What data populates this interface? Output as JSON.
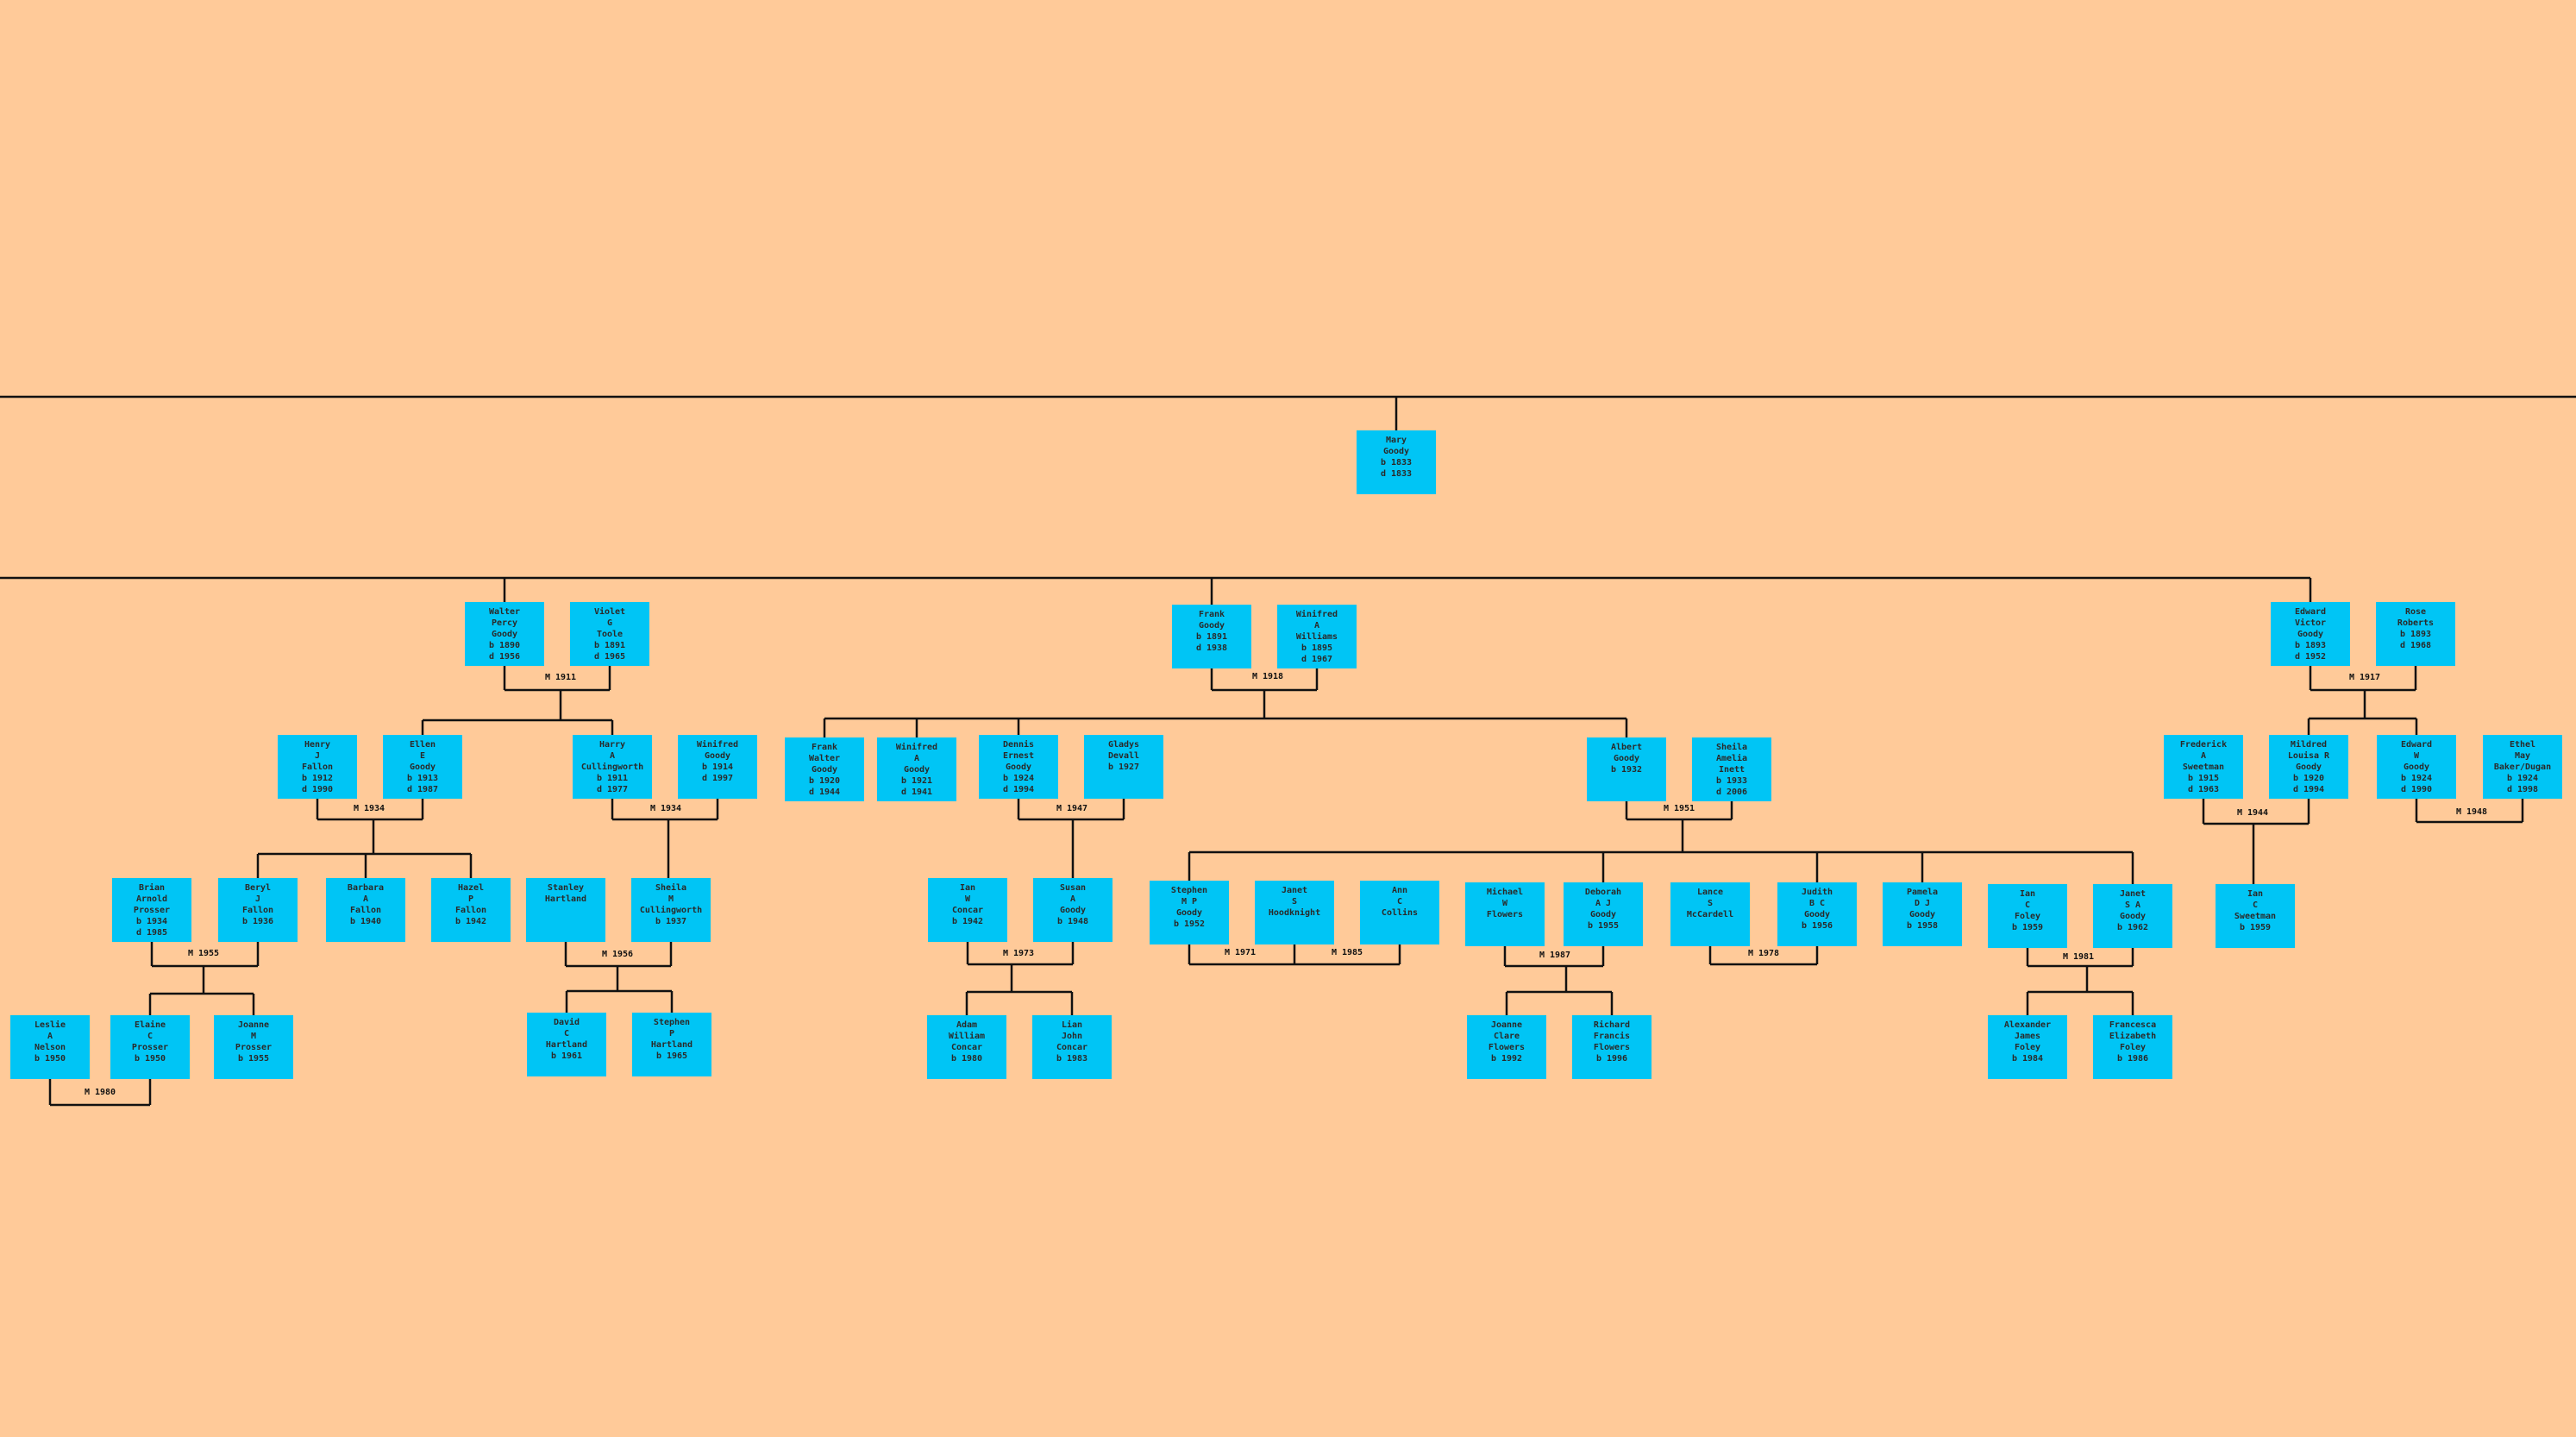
{
  "people": [
    {
      "id": "mary",
      "text": "Mary\nGoody\nb 1833\nd 1833"
    },
    {
      "id": "walter",
      "text": "Walter\nPercy\nGoody\nb 1890\nd 1956"
    },
    {
      "id": "violet",
      "text": "Violet\nG\nToole\nb 1891\nd 1965"
    },
    {
      "id": "frank1",
      "text": "Frank\nGoody\nb 1891\nd 1938"
    },
    {
      "id": "winifredA",
      "text": "Winifred\nA\nWilliams\nb 1895\nd 1967"
    },
    {
      "id": "edwardV",
      "text": "Edward\nVictor\nGoody\nb 1893\nd 1952"
    },
    {
      "id": "rose",
      "text": "Rose\nRoberts\nb 1893\nd 1968"
    },
    {
      "id": "henry",
      "text": "Henry\nJ\nFallon\nb 1912\nd 1990"
    },
    {
      "id": "ellen",
      "text": "Ellen\nE\nGoody\nb 1913\nd 1987"
    },
    {
      "id": "harry",
      "text": "Harry\nA\nCullingworth\nb 1911\nd 1977"
    },
    {
      "id": "winifredG",
      "text": "Winifred\nGoody\nb 1914\nd 1997"
    },
    {
      "id": "frankW",
      "text": "Frank\nWalter\nGoody\nb 1920\nd 1944"
    },
    {
      "id": "winifredAG",
      "text": "Winifred\nA\nGoody\nb 1921\nd 1941"
    },
    {
      "id": "dennis",
      "text": "Dennis\nErnest\nGoody\nb 1924\nd 1994"
    },
    {
      "id": "gladys",
      "text": "Gladys\nDevall\nb 1927"
    },
    {
      "id": "albert",
      "text": "Albert\nGoody\nb 1932"
    },
    {
      "id": "sheilaI",
      "text": "Sheila\nAmelia\nInett\nb 1933\nd 2006"
    },
    {
      "id": "frederick",
      "text": "Frederick\nA\nSweetman\nb 1915\nd 1963"
    },
    {
      "id": "mildred",
      "text": "Mildred\nLouisa R\nGoody\nb 1920\nd 1994"
    },
    {
      "id": "edwardW",
      "text": "Edward\nW\nGoody\nb 1924\nd 1990"
    },
    {
      "id": "ethel",
      "text": "Ethel\nMay\nBaker/Dugan\nb 1924\nd 1998"
    },
    {
      "id": "brian",
      "text": "Brian\nArnold\nProsser\nb 1934\nd 1985"
    },
    {
      "id": "beryl",
      "text": "Beryl\nJ\nFallon\nb 1936"
    },
    {
      "id": "barbara",
      "text": "Barbara\nA\nFallon\nb 1940"
    },
    {
      "id": "hazel",
      "text": "Hazel\nP\nFallon\nb 1942"
    },
    {
      "id": "stanley",
      "text": "Stanley\nHartland"
    },
    {
      "id": "sheilaC",
      "text": "Sheila\nM\nCullingworth\nb 1937"
    },
    {
      "id": "ian1",
      "text": "Ian\nW\nConcar\nb 1942"
    },
    {
      "id": "susan",
      "text": "Susan\nA\nGoody\nb 1948"
    },
    {
      "id": "stephenG",
      "text": "Stephen\nM P\nGoody\nb 1952"
    },
    {
      "id": "janet1",
      "text": "Janet\nS\nHoodknight"
    },
    {
      "id": "ann",
      "text": "Ann\nC\nCollins"
    },
    {
      "id": "michael",
      "text": "Michael\nW\nFlowers"
    },
    {
      "id": "deborah",
      "text": "Deborah\nA J\nGoody\nb 1955"
    },
    {
      "id": "lance",
      "text": "Lance\nS\nMcCardell"
    },
    {
      "id": "judith",
      "text": "Judith\nB C\nGoody\nb 1956"
    },
    {
      "id": "pamela",
      "text": "Pamela\nD J\nGoody\nb 1958"
    },
    {
      "id": "ianF",
      "text": "Ian\nC\nFoley\nb 1959"
    },
    {
      "id": "janetG",
      "text": "Janet\nS A\nGoody\nb 1962"
    },
    {
      "id": "ianS",
      "text": "Ian\nC\nSweetman\nb 1959"
    },
    {
      "id": "leslie",
      "text": "Leslie\nA\nNelson\nb 1950"
    },
    {
      "id": "elaine",
      "text": "Elaine\nC\nProsser\nb 1950"
    },
    {
      "id": "joanne",
      "text": "Joanne\nM\nProsser\nb 1955"
    },
    {
      "id": "david",
      "text": "David\nC\nHartland\nb 1961"
    },
    {
      "id": "stephenH",
      "text": "Stephen\nP\nHartland\nb 1965"
    },
    {
      "id": "adam",
      "text": "Adam\nWilliam\nConcar\nb 1980"
    },
    {
      "id": "lian",
      "text": "Lian\nJohn\nConcar\nb 1983"
    },
    {
      "id": "joanneF",
      "text": "Joanne\nClare\nFlowers\nb 1992"
    },
    {
      "id": "richard",
      "text": "Richard\nFrancis\nFlowers\nb 1996"
    },
    {
      "id": "alexander",
      "text": "Alexander\nJames\nFoley\nb 1984"
    },
    {
      "id": "francesca",
      "text": "Francesca\nElizabeth\nFoley\nb 1986"
    }
  ],
  "marriages": [
    {
      "id": "m_walter",
      "label": "M 1911"
    },
    {
      "id": "m_frank1",
      "label": "M 1918"
    },
    {
      "id": "m_edwardV",
      "label": "M 1917"
    },
    {
      "id": "m_henry",
      "label": "M 1934"
    },
    {
      "id": "m_harry",
      "label": "M 1934"
    },
    {
      "id": "m_dennis",
      "label": "M 1947"
    },
    {
      "id": "m_albert",
      "label": "M 1951"
    },
    {
      "id": "m_fred",
      "label": "M 1944"
    },
    {
      "id": "m_edwardW",
      "label": "M 1948"
    },
    {
      "id": "m_brian",
      "label": "M 1955"
    },
    {
      "id": "m_stanley",
      "label": "M 1956"
    },
    {
      "id": "m_ian",
      "label": "M 1973"
    },
    {
      "id": "m_stephen1",
      "label": "M 1971"
    },
    {
      "id": "m_stephen2",
      "label": "M 1985"
    },
    {
      "id": "m_michael",
      "label": "M 1987"
    },
    {
      "id": "m_lance",
      "label": "M 1978"
    },
    {
      "id": "m_ianF",
      "label": "M 1981"
    },
    {
      "id": "m_leslie",
      "label": "M 1980"
    }
  ]
}
